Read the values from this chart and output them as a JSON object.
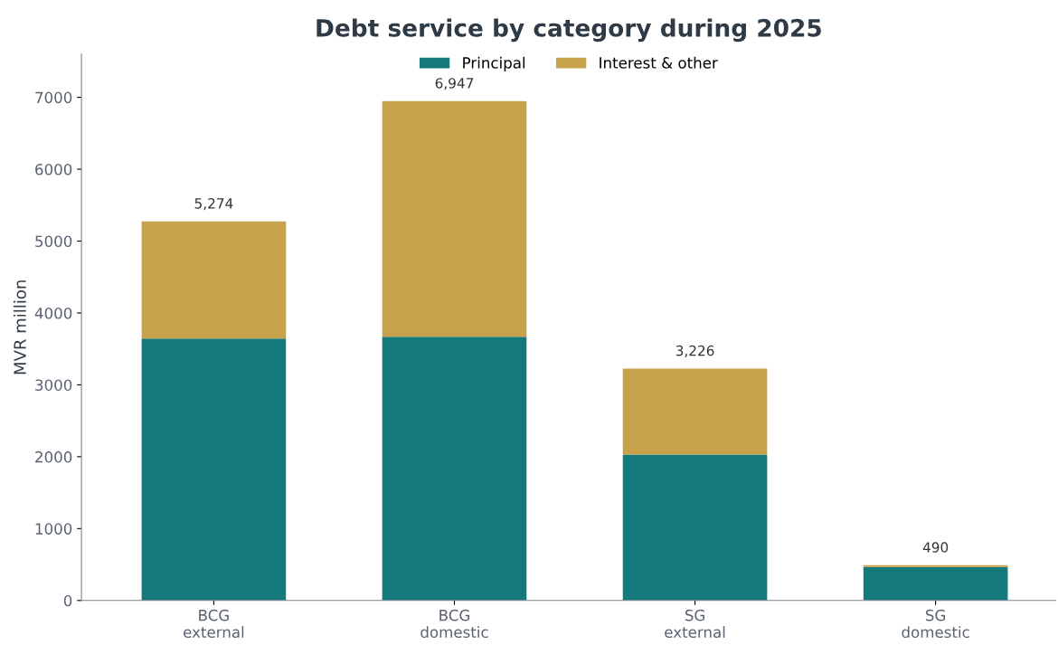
{
  "chart_data": {
    "type": "bar",
    "title": "Debt service by category during 2025",
    "ylabel": "MVR million",
    "categories": [
      "BCG\nexternal",
      "BCG\ndomestic",
      "SG\nexternal",
      "SG\ndomestic"
    ],
    "series": [
      {
        "name": "Principal",
        "color": "#157a7c",
        "values": [
          3645,
          3670,
          2030,
          467
        ]
      },
      {
        "name": "Interest & other",
        "color": "#c8a24a",
        "values": [
          1629,
          3277,
          1196,
          23
        ]
      }
    ],
    "stacked": true,
    "totals": [
      "5,274",
      "6,947",
      "3,226",
      "490"
    ],
    "ylim": [
      0,
      7600
    ],
    "yticks": [
      0,
      1000,
      2000,
      3000,
      4000,
      5000,
      6000,
      7000
    ],
    "grid": false,
    "legend": "top"
  }
}
